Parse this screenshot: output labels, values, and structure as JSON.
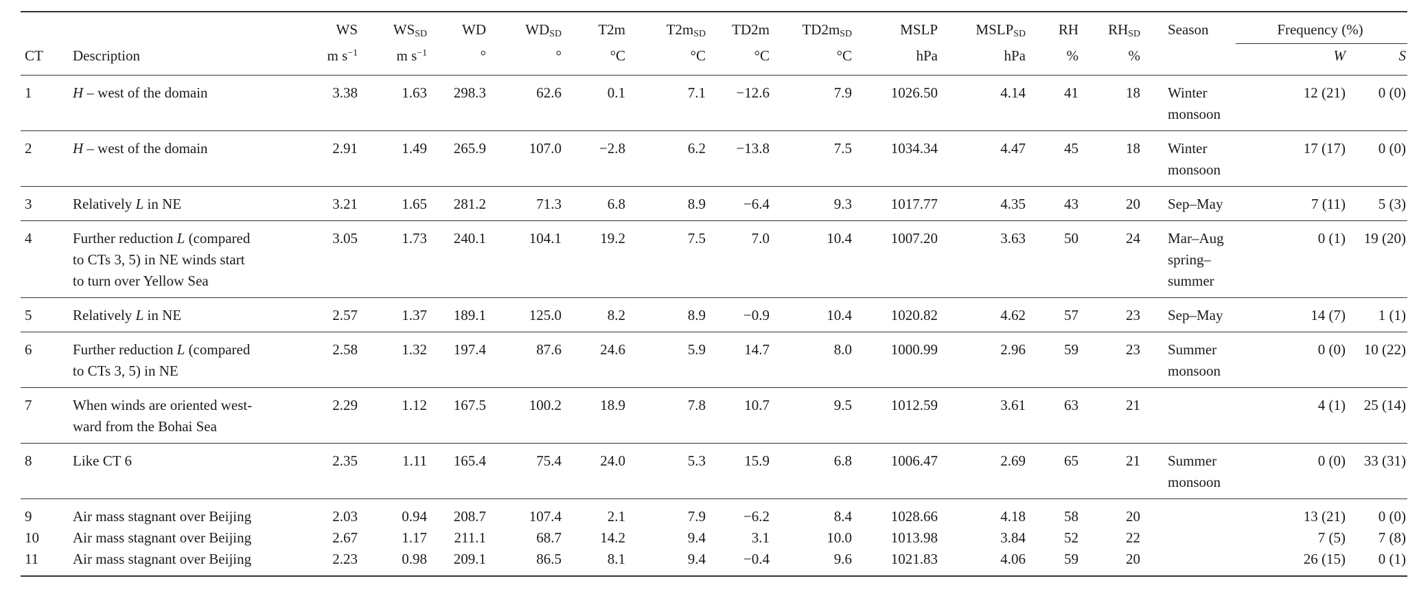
{
  "page": {
    "background": "#ffffff",
    "text_color": "#1b1b1b",
    "rule_color": "#333333"
  },
  "table": {
    "header": {
      "top_row": [
        {
          "text": ""
        },
        {
          "text": ""
        },
        {
          "text": "WS"
        },
        {
          "text": "WS",
          "sub": "SD"
        },
        {
          "text": "WD"
        },
        {
          "text": "WD",
          "sub": "SD"
        },
        {
          "text": "T2m"
        },
        {
          "text": "T2m",
          "sub": "SD"
        },
        {
          "text": "TD2m"
        },
        {
          "text": "TD2m",
          "sub": "SD"
        },
        {
          "text": "MSLP"
        },
        {
          "text": "MSLP",
          "sub": "SD"
        },
        {
          "text": "RH"
        },
        {
          "text": "RH",
          "sub": "SD"
        },
        {
          "text": "Season"
        }
      ],
      "frequency_group": {
        "label": "Frequency (%)",
        "subcols": [
          "W",
          "S"
        ]
      },
      "bottom_row": [
        {
          "text": "CT"
        },
        {
          "text": "Description"
        },
        {
          "text": "m s",
          "sup": "−1"
        },
        {
          "text": "m s",
          "sup": "−1"
        },
        {
          "text": "°"
        },
        {
          "text": "°"
        },
        {
          "text": "°C"
        },
        {
          "text": "°C"
        },
        {
          "text": "°C"
        },
        {
          "text": "°C"
        },
        {
          "text": "hPa"
        },
        {
          "text": "hPa"
        },
        {
          "text": "%"
        },
        {
          "text": "%"
        },
        {
          "text": ""
        }
      ]
    },
    "row_groups": [
      {
        "rows": [
          {
            "ct": "1",
            "description": [
              {
                "t": "H",
                "i": true
              },
              {
                "t": " – west of the domain"
              }
            ],
            "values": {
              "ws": "3.38",
              "ws_sd": "1.63",
              "wd": "298.3",
              "wd_sd": "62.6",
              "t2m": "0.1",
              "t2m_sd": "7.1",
              "td2m": "−12.6",
              "td2m_sd": "7.9",
              "mslp": "1026.50",
              "mslp_sd": "4.14",
              "rh": "41",
              "rh_sd": "18"
            },
            "season": [
              "Winter",
              "monsoon"
            ],
            "freq_w": "12 (21)",
            "freq_s": "0 (0)"
          }
        ]
      },
      {
        "rows": [
          {
            "ct": "2",
            "description": [
              {
                "t": "H",
                "i": true
              },
              {
                "t": " – west of the domain"
              }
            ],
            "values": {
              "ws": "2.91",
              "ws_sd": "1.49",
              "wd": "265.9",
              "wd_sd": "107.0",
              "t2m": "−2.8",
              "t2m_sd": "6.2",
              "td2m": "−13.8",
              "td2m_sd": "7.5",
              "mslp": "1034.34",
              "mslp_sd": "4.47",
              "rh": "45",
              "rh_sd": "18"
            },
            "season": [
              "Winter",
              "monsoon"
            ],
            "freq_w": "17 (17)",
            "freq_s": "0 (0)"
          }
        ]
      },
      {
        "rows": [
          {
            "ct": "3",
            "description": [
              {
                "t": "Relatively "
              },
              {
                "t": "L",
                "i": true
              },
              {
                "t": " in NE"
              }
            ],
            "values": {
              "ws": "3.21",
              "ws_sd": "1.65",
              "wd": "281.2",
              "wd_sd": "71.3",
              "t2m": "6.8",
              "t2m_sd": "8.9",
              "td2m": "−6.4",
              "td2m_sd": "9.3",
              "mslp": "1017.77",
              "mslp_sd": "4.35",
              "rh": "43",
              "rh_sd": "20"
            },
            "season": [
              "Sep–May"
            ],
            "freq_w": "7 (11)",
            "freq_s": "5 (3)"
          }
        ]
      },
      {
        "rows": [
          {
            "ct": "4",
            "description": [
              {
                "t": "Further reduction "
              },
              {
                "t": "L",
                "i": true
              },
              {
                "t": " (compared"
              },
              {
                "br": true
              },
              {
                "t": "to CTs 3, 5) in NE winds start"
              },
              {
                "br": true
              },
              {
                "t": "to turn over Yellow Sea"
              }
            ],
            "values": {
              "ws": "3.05",
              "ws_sd": "1.73",
              "wd": "240.1",
              "wd_sd": "104.1",
              "t2m": "19.2",
              "t2m_sd": "7.5",
              "td2m": "7.0",
              "td2m_sd": "10.4",
              "mslp": "1007.20",
              "mslp_sd": "3.63",
              "rh": "50",
              "rh_sd": "24"
            },
            "season": [
              "Mar–Aug",
              "spring–",
              "summer"
            ],
            "freq_w": "0 (1)",
            "freq_s": "19 (20)"
          }
        ]
      },
      {
        "rows": [
          {
            "ct": "5",
            "description": [
              {
                "t": "Relatively "
              },
              {
                "t": "L",
                "i": true
              },
              {
                "t": " in NE"
              }
            ],
            "values": {
              "ws": "2.57",
              "ws_sd": "1.37",
              "wd": "189.1",
              "wd_sd": "125.0",
              "t2m": "8.2",
              "t2m_sd": "8.9",
              "td2m": "−0.9",
              "td2m_sd": "10.4",
              "mslp": "1020.82",
              "mslp_sd": "4.62",
              "rh": "57",
              "rh_sd": "23"
            },
            "season": [
              "Sep–May"
            ],
            "freq_w": "14 (7)",
            "freq_s": "1 (1)"
          }
        ]
      },
      {
        "rows": [
          {
            "ct": "6",
            "description": [
              {
                "t": "Further reduction "
              },
              {
                "t": "L",
                "i": true
              },
              {
                "t": " (compared"
              },
              {
                "br": true
              },
              {
                "t": "to CTs 3, 5) in NE"
              }
            ],
            "values": {
              "ws": "2.58",
              "ws_sd": "1.32",
              "wd": "197.4",
              "wd_sd": "87.6",
              "t2m": "24.6",
              "t2m_sd": "5.9",
              "td2m": "14.7",
              "td2m_sd": "8.0",
              "mslp": "1000.99",
              "mslp_sd": "2.96",
              "rh": "59",
              "rh_sd": "23"
            },
            "season": [
              "Summer",
              "monsoon"
            ],
            "freq_w": "0 (0)",
            "freq_s": "10 (22)"
          }
        ]
      },
      {
        "rows": [
          {
            "ct": "7",
            "description": [
              {
                "t": "When winds are oriented west-"
              },
              {
                "br": true
              },
              {
                "t": "ward from the Bohai Sea"
              }
            ],
            "values": {
              "ws": "2.29",
              "ws_sd": "1.12",
              "wd": "167.5",
              "wd_sd": "100.2",
              "t2m": "18.9",
              "t2m_sd": "7.8",
              "td2m": "10.7",
              "td2m_sd": "9.5",
              "mslp": "1012.59",
              "mslp_sd": "3.61",
              "rh": "63",
              "rh_sd": "21"
            },
            "season": [],
            "freq_w": "4 (1)",
            "freq_s": "25 (14)"
          }
        ]
      },
      {
        "rows": [
          {
            "ct": "8",
            "description": [
              {
                "t": "Like CT 6"
              }
            ],
            "values": {
              "ws": "2.35",
              "ws_sd": "1.11",
              "wd": "165.4",
              "wd_sd": "75.4",
              "t2m": "24.0",
              "t2m_sd": "5.3",
              "td2m": "15.9",
              "td2m_sd": "6.8",
              "mslp": "1006.47",
              "mslp_sd": "2.69",
              "rh": "65",
              "rh_sd": "21"
            },
            "season": [
              "Summer",
              "monsoon"
            ],
            "freq_w": "0 (0)",
            "freq_s": "33 (31)"
          }
        ]
      },
      {
        "rows": [
          {
            "ct": "9",
            "description": [
              {
                "t": "Air mass stagnant over Beijing"
              }
            ],
            "values": {
              "ws": "2.03",
              "ws_sd": "0.94",
              "wd": "208.7",
              "wd_sd": "107.4",
              "t2m": "2.1",
              "t2m_sd": "7.9",
              "td2m": "−6.2",
              "td2m_sd": "8.4",
              "mslp": "1028.66",
              "mslp_sd": "4.18",
              "rh": "58",
              "rh_sd": "20"
            },
            "season": [],
            "freq_w": "13 (21)",
            "freq_s": "0 (0)"
          },
          {
            "ct": "10",
            "description": [
              {
                "t": "Air mass stagnant over Beijing"
              }
            ],
            "values": {
              "ws": "2.67",
              "ws_sd": "1.17",
              "wd": "211.1",
              "wd_sd": "68.7",
              "t2m": "14.2",
              "t2m_sd": "9.4",
              "td2m": "3.1",
              "td2m_sd": "10.0",
              "mslp": "1013.98",
              "mslp_sd": "3.84",
              "rh": "52",
              "rh_sd": "22"
            },
            "season": [],
            "freq_w": "7 (5)",
            "freq_s": "7 (8)"
          },
          {
            "ct": "11",
            "description": [
              {
                "t": "Air mass stagnant over Beijing"
              }
            ],
            "values": {
              "ws": "2.23",
              "ws_sd": "0.98",
              "wd": "209.1",
              "wd_sd": "86.5",
              "t2m": "8.1",
              "t2m_sd": "9.4",
              "td2m": "−0.4",
              "td2m_sd": "9.6",
              "mslp": "1021.83",
              "mslp_sd": "4.06",
              "rh": "59",
              "rh_sd": "20"
            },
            "season": [],
            "freq_w": "26 (15)",
            "freq_s": "0 (1)"
          }
        ]
      }
    ]
  }
}
